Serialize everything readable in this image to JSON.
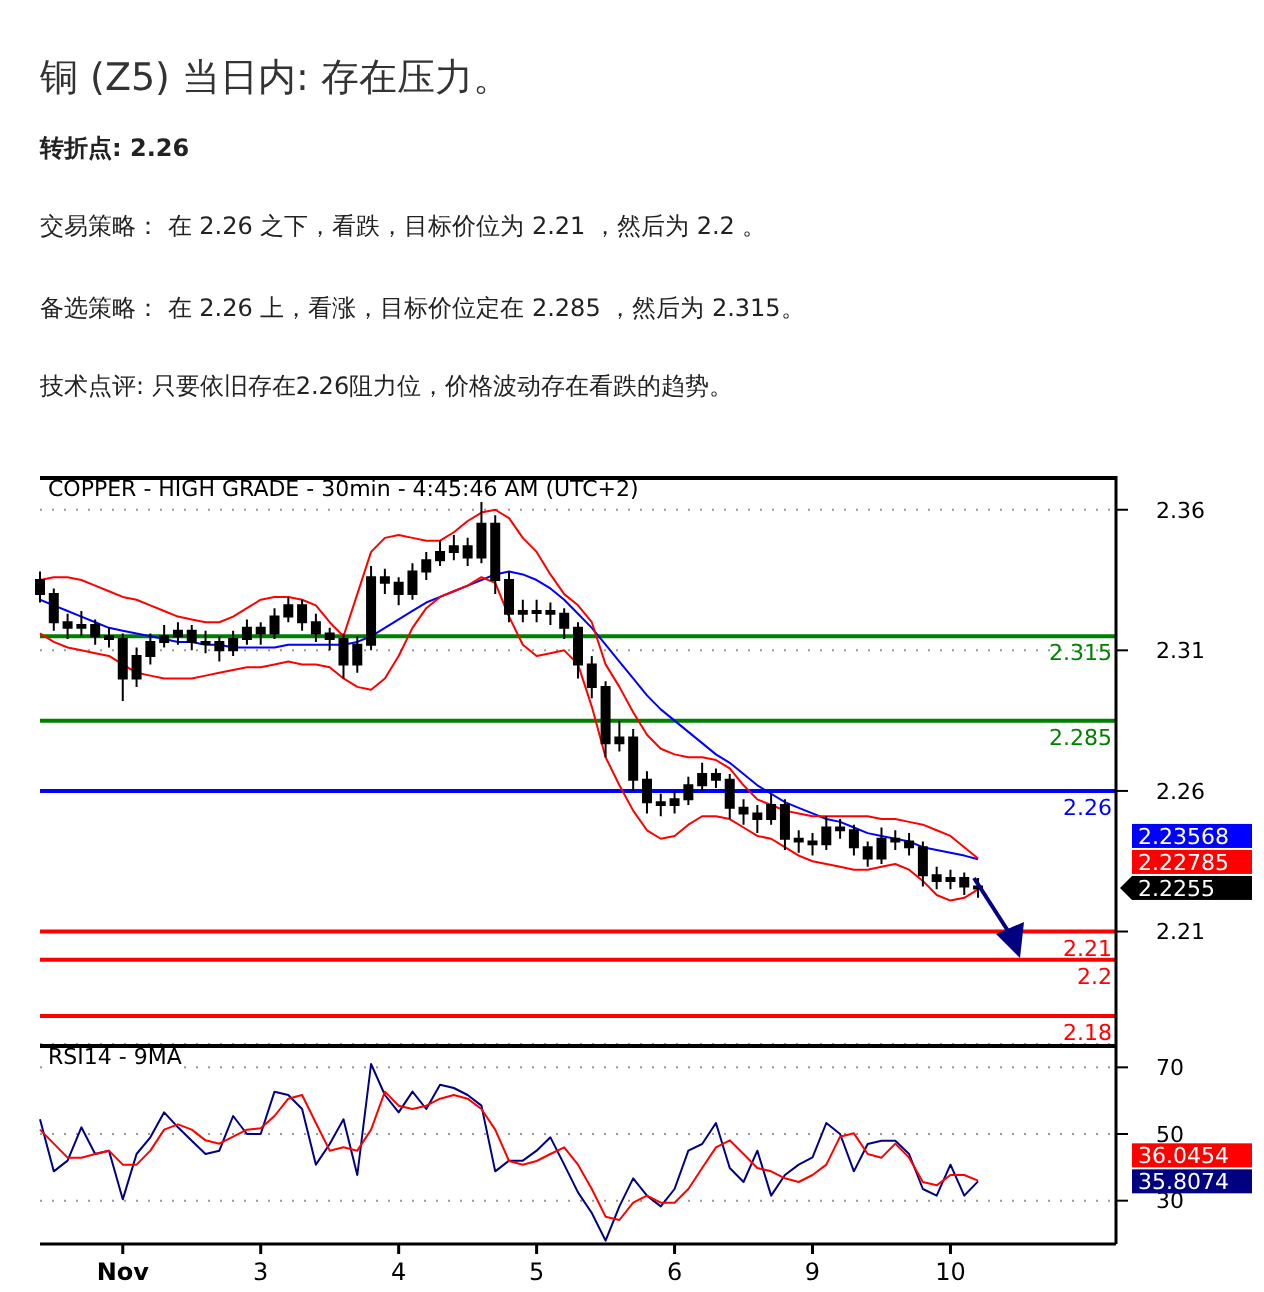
{
  "chart_data": [
    {
      "type": "candlestick",
      "title": "铜 (Z5) 当日内: 存在压力。",
      "subtitle": "转折点: 2.26",
      "annotations": [
        "交易策略： 在 2.26 之下，看跌，目标价位为 2.21 ，然后为 2.2 。",
        "备选策略： 在 2.26 上，看涨，目标价位定在 2.285 ，然后为 2.315。",
        "技术点评: 只要依旧存在2.26阻力位，价格波动存在看跌的趋势。",
        "COPPER - HIGH GRADE - 30min - 4:45:46 AM (UTC+2)",
        "2.23568",
        "2.22785",
        "2.2255"
      ],
      "categories": [
        null,
        null,
        null,
        null,
        null,
        null,
        null,
        null,
        null,
        null,
        null,
        null,
        null,
        null,
        null,
        null,
        null,
        null,
        null,
        null,
        null,
        null,
        null,
        null,
        null,
        null,
        null,
        null,
        null,
        null,
        null,
        null,
        null,
        null,
        null,
        null,
        null,
        null,
        null,
        null,
        null,
        null,
        null,
        null,
        null,
        null,
        null,
        null,
        null,
        null,
        null,
        null,
        null,
        null,
        null,
        null,
        null,
        null,
        null,
        null,
        null,
        null,
        null,
        null,
        null,
        null,
        null,
        null,
        null,
        null,
        null,
        null,
        null,
        null,
        null,
        null,
        null,
        null,
        null
      ],
      "color": "#000000",
      "ohlc": [
        [
          2.335,
          2.338,
          2.327,
          2.33
        ],
        [
          2.33,
          2.332,
          2.317,
          2.32
        ],
        [
          2.32,
          2.323,
          2.314,
          2.318
        ],
        [
          2.318,
          2.324,
          2.315,
          2.319
        ],
        [
          2.319,
          2.321,
          2.312,
          2.315
        ],
        [
          2.315,
          2.318,
          2.311,
          2.314
        ],
        [
          2.314,
          2.316,
          2.292,
          2.3
        ],
        [
          2.3,
          2.311,
          2.297,
          2.308
        ],
        [
          2.308,
          2.316,
          2.305,
          2.313
        ],
        [
          2.313,
          2.319,
          2.311,
          2.315
        ],
        [
          2.315,
          2.32,
          2.312,
          2.317
        ],
        [
          2.317,
          2.319,
          2.31,
          2.313
        ],
        [
          2.313,
          2.317,
          2.309,
          2.313
        ],
        [
          2.313,
          2.315,
          2.306,
          2.31
        ],
        [
          2.31,
          2.317,
          2.308,
          2.314
        ],
        [
          2.314,
          2.321,
          2.312,
          2.318
        ],
        [
          2.318,
          2.32,
          2.312,
          2.316
        ],
        [
          2.316,
          2.325,
          2.314,
          2.322
        ],
        [
          2.322,
          2.329,
          2.32,
          2.326
        ],
        [
          2.326,
          2.328,
          2.317,
          2.32
        ],
        [
          2.32,
          2.323,
          2.313,
          2.316
        ],
        [
          2.316,
          2.318,
          2.31,
          2.314
        ],
        [
          2.314,
          2.316,
          2.3,
          2.305
        ],
        [
          2.305,
          2.315,
          2.302,
          2.312
        ],
        [
          2.312,
          2.34,
          2.31,
          2.336
        ],
        [
          2.336,
          2.339,
          2.33,
          2.334
        ],
        [
          2.334,
          2.336,
          2.326,
          2.33
        ],
        [
          2.33,
          2.341,
          2.328,
          2.338
        ],
        [
          2.338,
          2.345,
          2.335,
          2.342
        ],
        [
          2.342,
          2.349,
          2.34,
          2.345
        ],
        [
          2.345,
          2.351,
          2.342,
          2.347
        ],
        [
          2.347,
          2.35,
          2.34,
          2.343
        ],
        [
          2.343,
          2.364,
          2.341,
          2.355
        ],
        [
          2.355,
          2.358,
          2.33,
          2.335
        ],
        [
          2.335,
          2.338,
          2.32,
          2.323
        ],
        [
          2.323,
          2.328,
          2.32,
          2.324
        ],
        [
          2.324,
          2.328,
          2.32,
          2.324
        ],
        [
          2.324,
          2.327,
          2.319,
          2.323
        ],
        [
          2.323,
          2.325,
          2.314,
          2.318
        ],
        [
          2.318,
          2.32,
          2.3,
          2.305
        ],
        [
          2.305,
          2.308,
          2.293,
          2.297
        ],
        [
          2.297,
          2.299,
          2.272,
          2.277
        ],
        [
          2.277,
          2.285,
          2.274,
          2.279
        ],
        [
          2.279,
          2.282,
          2.26,
          2.264
        ],
        [
          2.264,
          2.267,
          2.252,
          2.256
        ],
        [
          2.256,
          2.259,
          2.251,
          2.255
        ],
        [
          2.255,
          2.26,
          2.252,
          2.257
        ],
        [
          2.257,
          2.265,
          2.255,
          2.262
        ],
        [
          2.262,
          2.27,
          2.26,
          2.266
        ],
        [
          2.266,
          2.268,
          2.261,
          2.264
        ],
        [
          2.264,
          2.266,
          2.25,
          2.254
        ],
        [
          2.254,
          2.257,
          2.248,
          2.252
        ],
        [
          2.252,
          2.255,
          2.245,
          2.25
        ],
        [
          2.25,
          2.259,
          2.248,
          2.255
        ],
        [
          2.255,
          2.257,
          2.239,
          2.243
        ],
        [
          2.243,
          2.246,
          2.238,
          2.242
        ],
        [
          2.242,
          2.245,
          2.237,
          2.241
        ],
        [
          2.241,
          2.251,
          2.239,
          2.247
        ],
        [
          2.247,
          2.25,
          2.243,
          2.246
        ],
        [
          2.246,
          2.248,
          2.237,
          2.24
        ],
        [
          2.24,
          2.242,
          2.233,
          2.236
        ],
        [
          2.236,
          2.247,
          2.234,
          2.243
        ],
        [
          2.243,
          2.246,
          2.239,
          2.242
        ],
        [
          2.242,
          2.245,
          2.237,
          2.24
        ],
        [
          2.24,
          2.242,
          2.226,
          2.23
        ],
        [
          2.23,
          2.233,
          2.225,
          2.228
        ],
        [
          2.228,
          2.232,
          2.225,
          2.229
        ],
        [
          2.229,
          2.231,
          2.223,
          2.226
        ],
        [
          2.226,
          2.229,
          2.222,
          2.2255
        ],
        null,
        null,
        null,
        null,
        null,
        null,
        null,
        null,
        null,
        null
      ],
      "series": [
        {
          "type": "line",
          "color": "#0000ff",
          "values": [
            2.328,
            2.326,
            2.324,
            2.322,
            2.32,
            2.318,
            2.317,
            2.316,
            2.315,
            2.314,
            2.313,
            2.313,
            2.312,
            2.312,
            2.311,
            2.311,
            2.311,
            2.311,
            2.312,
            2.312,
            2.312,
            2.312,
            2.312,
            2.313,
            2.315,
            2.318,
            2.321,
            2.324,
            2.327,
            2.329,
            2.331,
            2.333,
            2.335,
            2.337,
            2.338,
            2.337,
            2.335,
            2.332,
            2.328,
            2.323,
            2.318,
            2.312,
            2.306,
            2.3,
            2.294,
            2.289,
            2.285,
            2.281,
            2.277,
            2.273,
            2.27,
            2.266,
            2.262,
            2.259,
            2.256,
            2.254,
            2.252,
            2.25,
            2.249,
            2.247,
            2.245,
            2.244,
            2.243,
            2.242,
            2.24,
            2.239,
            2.238,
            2.237,
            2.2357,
            null,
            null,
            null,
            null,
            null,
            null,
            null,
            null,
            null,
            null
          ]
        },
        {
          "type": "line",
          "color": "#ff0000",
          "values": [
            2.335,
            2.336,
            2.336,
            2.335,
            2.333,
            2.331,
            2.329,
            2.328,
            2.326,
            2.324,
            2.322,
            2.321,
            2.32,
            2.32,
            2.322,
            2.325,
            2.328,
            2.329,
            2.329,
            2.328,
            2.326,
            2.32,
            2.315,
            2.33,
            2.345,
            2.35,
            2.351,
            2.35,
            2.349,
            2.349,
            2.352,
            2.356,
            2.359,
            2.36,
            2.357,
            2.35,
            2.345,
            2.337,
            2.33,
            2.326,
            2.32,
            2.305,
            2.297,
            2.288,
            2.28,
            2.275,
            2.273,
            2.272,
            2.272,
            2.271,
            2.268,
            2.262,
            2.257,
            2.255,
            2.253,
            2.252,
            2.251,
            2.251,
            2.251,
            2.251,
            2.251,
            2.25,
            2.25,
            2.249,
            2.248,
            2.246,
            2.244,
            2.24,
            2.236,
            null,
            null,
            null,
            null,
            null,
            null,
            null,
            null,
            null,
            null
          ]
        },
        {
          "type": "line",
          "color": "#ff0000",
          "values": [
            2.316,
            2.313,
            2.311,
            2.31,
            2.309,
            2.308,
            2.305,
            2.302,
            2.301,
            2.3,
            2.3,
            2.3,
            2.301,
            2.302,
            2.303,
            2.304,
            2.304,
            2.305,
            2.306,
            2.305,
            2.305,
            2.304,
            2.3,
            2.297,
            2.296,
            2.3,
            2.308,
            2.318,
            2.325,
            2.329,
            2.331,
            2.333,
            2.336,
            2.334,
            2.322,
            2.312,
            2.308,
            2.309,
            2.31,
            2.305,
            2.29,
            2.272,
            2.262,
            2.253,
            2.246,
            2.243,
            2.244,
            2.248,
            2.251,
            2.251,
            2.25,
            2.247,
            2.244,
            2.243,
            2.24,
            2.237,
            2.235,
            2.234,
            2.233,
            2.232,
            2.232,
            2.233,
            2.234,
            2.232,
            2.228,
            2.223,
            2.221,
            2.222,
            2.225,
            null,
            null,
            null,
            null,
            null,
            null,
            null,
            null,
            null,
            null
          ]
        }
      ],
      "ylim": [
        2.17,
        2.372
      ],
      "yticks": [
        2.21,
        2.26,
        2.31,
        2.36
      ],
      "grid": "y",
      "tick_labels": "y",
      "ref_lines": [
        {
          "axis": "y",
          "value": 2.315,
          "label": "2.315",
          "color": "#008000"
        },
        {
          "axis": "y",
          "value": 2.285,
          "label": "2.285",
          "color": "#008000"
        },
        {
          "axis": "y",
          "value": 2.26,
          "label": "2.26",
          "color": "#0000ff"
        },
        {
          "axis": "y",
          "value": 2.21,
          "label": "2.21",
          "color": "#ff0000"
        },
        {
          "axis": "y",
          "value": 2.2,
          "label": "2.2",
          "color": "#ff0000"
        },
        {
          "axis": "y",
          "value": 2.18,
          "label": "2.18",
          "color": "#ff0000"
        }
      ]
    },
    {
      "type": "line",
      "title": "RSI14 - 9MA",
      "annotations": [
        "36.0454",
        "35.8074"
      ],
      "categories": [
        null,
        null,
        null,
        null,
        null,
        null,
        "Nov",
        null,
        null,
        null,
        null,
        null,
        null,
        null,
        null,
        null,
        "3",
        null,
        null,
        null,
        null,
        null,
        null,
        null,
        null,
        null,
        "4",
        null,
        null,
        null,
        null,
        null,
        null,
        null,
        null,
        null,
        "5",
        null,
        null,
        null,
        null,
        null,
        null,
        null,
        null,
        null,
        "6",
        null,
        null,
        null,
        null,
        null,
        null,
        null,
        null,
        null,
        "9",
        null,
        null,
        null,
        null,
        null,
        null,
        null,
        null,
        null,
        "10",
        null,
        null,
        null,
        null,
        null,
        null,
        null,
        null,
        null,
        null,
        null,
        null
      ],
      "series": [
        {
          "color": "#000080",
          "values": [
            54.4,
            38.8,
            42,
            52,
            44,
            45,
            30.4,
            44,
            49,
            56.5,
            52,
            48,
            44,
            45,
            55.4,
            50,
            50,
            62.7,
            61.7,
            57.5,
            40.8,
            47,
            54.4,
            37.7,
            71,
            61.7,
            56.5,
            62.7,
            57.5,
            64.8,
            63.8,
            61.7,
            58.5,
            38.8,
            42,
            42,
            45,
            49,
            40.8,
            32.5,
            26.3,
            18,
            28.3,
            36.7,
            31.5,
            28.3,
            33.5,
            45,
            47,
            53.3,
            39.8,
            35.6,
            45,
            31.5,
            37.7,
            40.8,
            43,
            53.3,
            50,
            38.8,
            47,
            48,
            48,
            44,
            33.5,
            31.5,
            40.8,
            31.5,
            35.8,
            null,
            null,
            null,
            null,
            null,
            null,
            null,
            null,
            null,
            null
          ]
        },
        {
          "color": "#ff0000",
          "values": [
            51.3,
            47.1,
            42.9,
            42.9,
            44,
            45,
            40.8,
            40.8,
            45,
            51.3,
            52.9,
            51.3,
            48.1,
            47.1,
            49.2,
            51.3,
            51.7,
            55.4,
            60.6,
            61.7,
            53.3,
            45,
            46,
            45,
            51.3,
            62.7,
            58.5,
            57.5,
            58.5,
            60.6,
            61.7,
            60.6,
            57.5,
            51.3,
            41.9,
            40.8,
            41.9,
            44,
            46,
            40.8,
            33.5,
            25.2,
            24.2,
            29.4,
            31.5,
            29.4,
            29.4,
            33.5,
            39.8,
            46,
            48.1,
            44,
            39.8,
            38.8,
            36.7,
            35.6,
            37.7,
            40.8,
            49.2,
            50.2,
            44,
            42.9,
            47.1,
            42.9,
            35.6,
            34.6,
            37.7,
            37.7,
            36.0,
            null,
            null,
            null,
            null,
            null,
            null,
            null,
            null,
            null,
            null
          ]
        }
      ],
      "ylim": [
        17,
        77
      ],
      "yticks": [
        30,
        50,
        70
      ],
      "grid": "y"
    }
  ]
}
